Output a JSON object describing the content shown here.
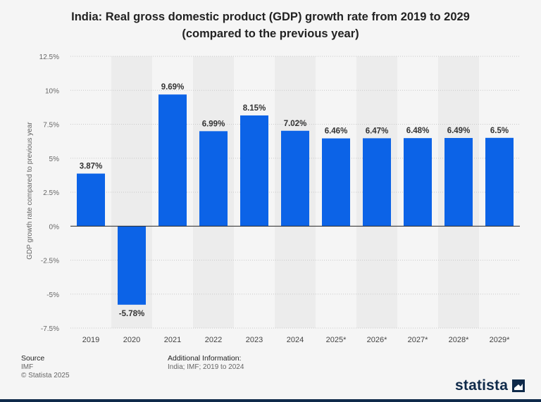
{
  "chart_data": {
    "type": "bar",
    "title_line1": "India: Real gross domestic product (GDP) growth rate from 2019 to 2029",
    "title_line2": "(compared to the previous year)",
    "xlabel": "",
    "ylabel": "GDP growth rate compared to previous year",
    "ylim": [
      -7.5,
      12.5
    ],
    "yticks": [
      "12.5%",
      "10%",
      "7.5%",
      "5%",
      "2.5%",
      "0%",
      "-2.5%",
      "-5%",
      "-7.5%"
    ],
    "ytick_values": [
      12.5,
      10,
      7.5,
      5,
      2.5,
      0,
      -2.5,
      -5,
      -7.5
    ],
    "categories": [
      "2019",
      "2020",
      "2021",
      "2022",
      "2023",
      "2024",
      "2025*",
      "2026*",
      "2027*",
      "2028*",
      "2029*"
    ],
    "values": [
      3.87,
      -5.78,
      9.69,
      6.99,
      8.15,
      7.02,
      6.46,
      6.47,
      6.48,
      6.49,
      6.5
    ],
    "value_labels": [
      "3.87%",
      "-5.78%",
      "9.69%",
      "6.99%",
      "8.15%",
      "7.02%",
      "6.46%",
      "6.47%",
      "6.48%",
      "6.49%",
      "6.5%"
    ],
    "grid": true,
    "bar_color": "#0c63e7",
    "alt_column_shade": "#ececec"
  },
  "footer": {
    "source_heading": "Source",
    "source_name": "IMF",
    "copyright": "© Statista 2025",
    "additional_heading": "Additional Information:",
    "additional_text": "India; IMF; 2019 to 2024"
  },
  "brand": {
    "logo_text": "statista",
    "color": "#0f2a4a"
  }
}
